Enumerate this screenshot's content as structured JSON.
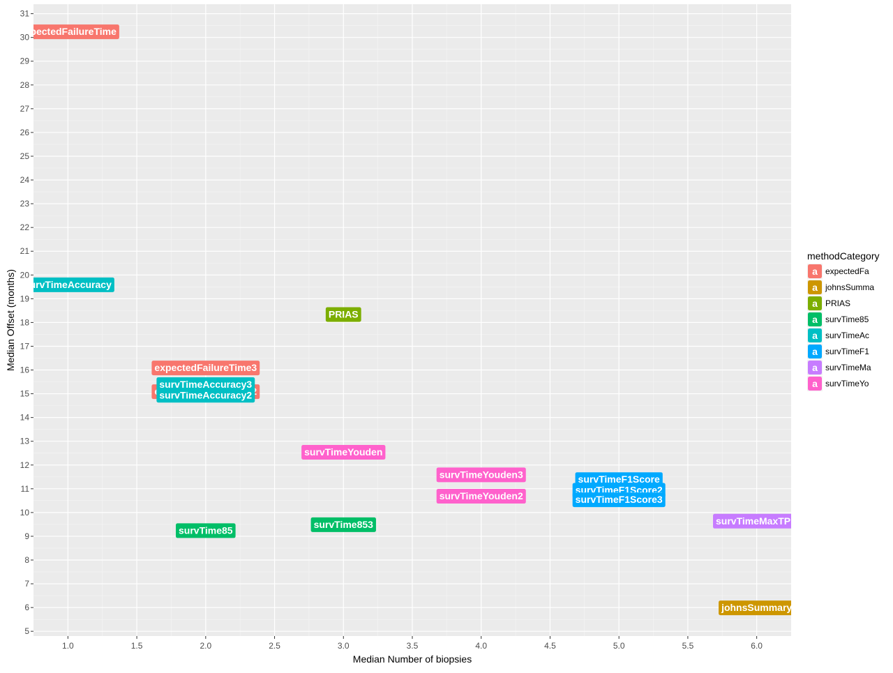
{
  "chart_data": {
    "type": "scatter",
    "xlabel": "Median Number of biopsies",
    "ylabel": "Median Offset (months)",
    "xlim": [
      0.75,
      6.25
    ],
    "ylim": [
      4.8,
      31.4
    ],
    "x_ticks": [
      "1.0",
      "1.5",
      "2.0",
      "2.5",
      "3.0",
      "3.5",
      "4.0",
      "4.5",
      "5.0",
      "5.5",
      "6.0"
    ],
    "y_ticks": [
      "5",
      "6",
      "7",
      "8",
      "9",
      "10",
      "11",
      "12",
      "13",
      "14",
      "15",
      "16",
      "17",
      "18",
      "19",
      "20",
      "21",
      "22",
      "23",
      "24",
      "25",
      "26",
      "27",
      "28",
      "29",
      "30",
      "31"
    ],
    "grid": true,
    "background": "#ebebeb",
    "legend": {
      "title": "methodCategory",
      "position": "right",
      "key_glyph": "a",
      "entries": [
        {
          "label": "expectedFa",
          "color": "#F8766D"
        },
        {
          "label": "johnsSumma",
          "color": "#CD9600"
        },
        {
          "label": "PRIAS",
          "color": "#7CAE00"
        },
        {
          "label": "survTime85",
          "color": "#00BE67"
        },
        {
          "label": "survTimeAc",
          "color": "#00BFC4"
        },
        {
          "label": "survTimeF1",
          "color": "#00A9FF"
        },
        {
          "label": "survTimeMa",
          "color": "#C77CFF"
        },
        {
          "label": "survTimeYo",
          "color": "#FF61CC"
        }
      ]
    },
    "points": [
      {
        "label": "expectedFailureTime",
        "x": 1.0,
        "y": 30.25,
        "category": "expectedFa"
      },
      {
        "label": "expectedFailureTime2",
        "x": 2.0,
        "y": 15.1,
        "category": "expectedFa"
      },
      {
        "label": "expectedFailureTime3",
        "x": 2.0,
        "y": 16.1,
        "category": "expectedFa"
      },
      {
        "label": "johnsSummary",
        "x": 6.0,
        "y": 6.0,
        "category": "johnsSumma"
      },
      {
        "label": "PRIAS",
        "x": 3.0,
        "y": 18.35,
        "category": "PRIAS"
      },
      {
        "label": "survTime85",
        "x": 2.0,
        "y": 9.25,
        "category": "survTime85"
      },
      {
        "label": "survTime853",
        "x": 3.0,
        "y": 9.5,
        "category": "survTime85"
      },
      {
        "label": "survTimeAccuracy",
        "x": 1.0,
        "y": 19.6,
        "category": "survTimeAc"
      },
      {
        "label": "survTimeAccuracy2",
        "x": 2.0,
        "y": 14.95,
        "category": "survTimeAc"
      },
      {
        "label": "survTimeAccuracy3",
        "x": 2.0,
        "y": 15.4,
        "category": "survTimeAc"
      },
      {
        "label": "survTimeF1Score",
        "x": 5.0,
        "y": 11.4,
        "category": "survTimeF1"
      },
      {
        "label": "survTimeF1Score2",
        "x": 5.0,
        "y": 10.95,
        "category": "survTimeF1"
      },
      {
        "label": "survTimeF1Score3",
        "x": 5.0,
        "y": 10.55,
        "category": "survTimeF1"
      },
      {
        "label": "survTimeMaxTPR",
        "x": 6.0,
        "y": 9.65,
        "category": "survTimeMa"
      },
      {
        "label": "survTimeYouden",
        "x": 3.0,
        "y": 12.55,
        "category": "survTimeYo"
      },
      {
        "label": "survTimeYouden2",
        "x": 4.0,
        "y": 10.7,
        "category": "survTimeYo"
      },
      {
        "label": "survTimeYouden3",
        "x": 4.0,
        "y": 11.6,
        "category": "survTimeYo"
      }
    ]
  }
}
